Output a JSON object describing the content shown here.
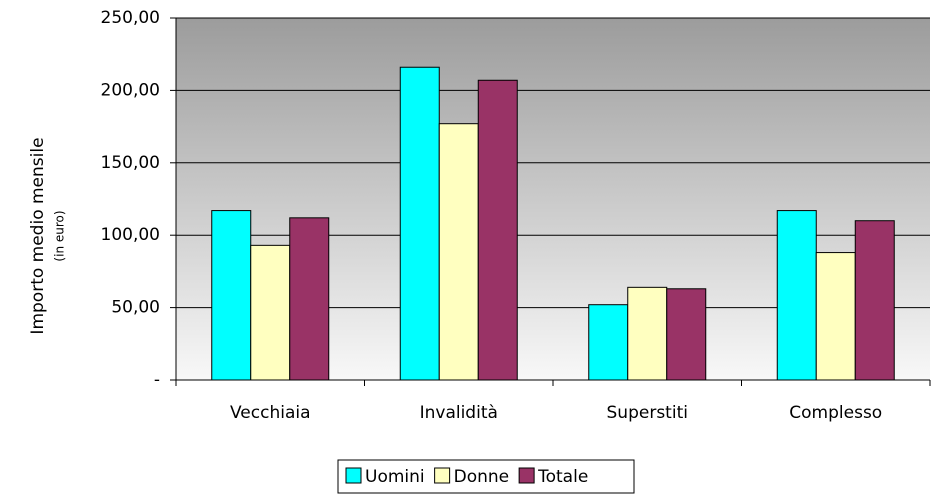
{
  "chart_data": {
    "type": "bar",
    "y_label": "Importo medio mensile",
    "y_sublabel": "(in euro)",
    "categories": [
      "Vecchiaia",
      "Invalidità",
      "Superstiti",
      "Complesso"
    ],
    "series": [
      {
        "name": "Uomini",
        "color": "#00ffff",
        "values": [
          117,
          216,
          52,
          117
        ]
      },
      {
        "name": "Donne",
        "color": "#ffffc0",
        "values": [
          93,
          177,
          64,
          88
        ]
      },
      {
        "name": "Totale",
        "color": "#993366",
        "values": [
          112,
          207,
          63,
          110
        ]
      }
    ],
    "ylim": [
      0,
      250
    ],
    "yticks": [
      {
        "value": 0,
        "label": "-"
      },
      {
        "value": 50,
        "label": "50,00"
      },
      {
        "value": 100,
        "label": "100,00"
      },
      {
        "value": 150,
        "label": "150,00"
      },
      {
        "value": 200,
        "label": "200,00"
      },
      {
        "value": 250,
        "label": "250,00"
      }
    ],
    "grid": true,
    "legend": "bottom"
  }
}
